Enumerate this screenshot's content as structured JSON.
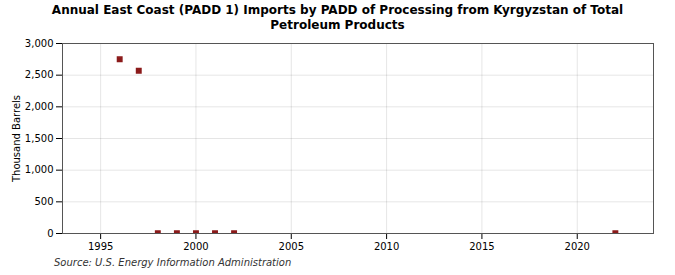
{
  "chart_data": {
    "type": "scatter",
    "title": "Annual East Coast (PADD 1) Imports by PADD of Processing from Kyrgyzstan of Total\nPetroleum Products",
    "ylabel": "Thousand Barrels",
    "source": "Source: U.S. Energy Information Administration",
    "x": [
      1996,
      1997,
      1998,
      1999,
      2000,
      2001,
      2002,
      2022
    ],
    "values": [
      2750,
      2570,
      5,
      5,
      5,
      5,
      5,
      5
    ],
    "color": "#8b1a1a",
    "marker": "square",
    "xlim": [
      1993,
      2024
    ],
    "ylim": [
      0,
      3000
    ],
    "xticks": [
      1995,
      2000,
      2005,
      2010,
      2015,
      2020
    ],
    "yticks": [
      0,
      500,
      {
        "value": 1000,
        "label": "1,000"
      },
      {
        "value": 1500,
        "label": "1,500"
      },
      {
        "value": 2000,
        "label": "2,000"
      },
      {
        "value": 2500,
        "label": "2,500"
      },
      {
        "value": 3000,
        "label": "3,000"
      }
    ],
    "grid": true
  }
}
